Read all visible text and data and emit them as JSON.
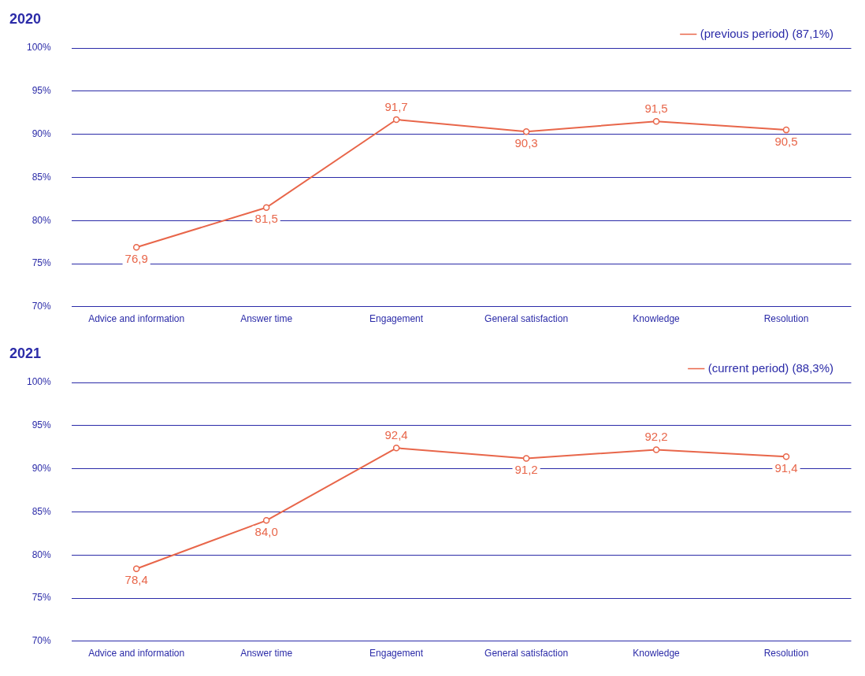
{
  "chart_data": [
    {
      "type": "line",
      "title": "2020",
      "categories": [
        "Advice and information",
        "Answer time",
        "Engagement",
        "General satisfaction",
        "Knowledge",
        "Resolution"
      ],
      "series": [
        {
          "name": "(previous period) (87,1%)",
          "color": "#e8664a",
          "values": [
            76.9,
            81.5,
            91.7,
            90.3,
            91.5,
            90.5
          ],
          "value_labels": [
            "76,9",
            "81,5",
            "91,7",
            "90,3",
            "91,5",
            "90,5"
          ]
        }
      ],
      "ylim": [
        70,
        100
      ],
      "yticks": [
        {
          "value": 70,
          "label": "70%"
        },
        {
          "value": 75,
          "label": "75%"
        },
        {
          "value": 80,
          "label": "80%"
        },
        {
          "value": 85,
          "label": "85%"
        },
        {
          "value": 90,
          "label": "90%"
        },
        {
          "value": 95,
          "label": "95%"
        },
        {
          "value": 100,
          "label": "100%"
        }
      ],
      "grid": "y",
      "legend": "top right",
      "marker": "circle",
      "line_style": "solid"
    },
    {
      "type": "line",
      "title": "2021",
      "categories": [
        "Advice and information",
        "Answer time",
        "Engagement",
        "General satisfaction",
        "Knowledge",
        "Resolution"
      ],
      "series": [
        {
          "name": "(current period) (88,3%)",
          "color": "#e8664a",
          "values": [
            78.4,
            84.0,
            92.4,
            91.2,
            92.2,
            91.4
          ],
          "value_labels": [
            "78,4",
            "84,0",
            "92,4",
            "91,2",
            "92,2",
            "91,4"
          ]
        }
      ],
      "ylim": [
        70,
        100
      ],
      "yticks": [
        {
          "value": 70,
          "label": "70%"
        },
        {
          "value": 75,
          "label": "75%"
        },
        {
          "value": 80,
          "label": "80%"
        },
        {
          "value": 85,
          "label": "85%"
        },
        {
          "value": 90,
          "label": "90%"
        },
        {
          "value": 95,
          "label": "95%"
        },
        {
          "value": 100,
          "label": "100%"
        }
      ],
      "grid": "y",
      "legend": "top right",
      "marker": "circle",
      "line_style": "solid"
    }
  ]
}
